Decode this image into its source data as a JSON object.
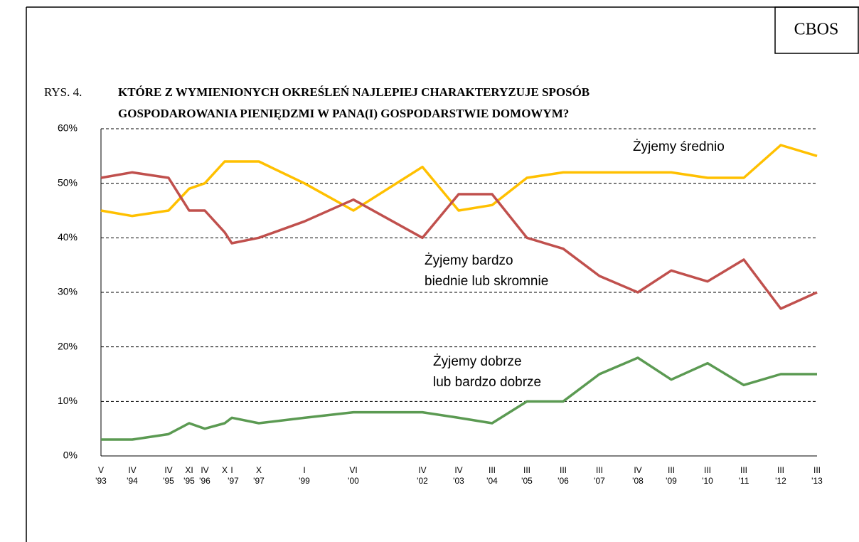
{
  "header": {
    "brand": "CBOS",
    "figure": "RYS. 4.",
    "title_lines": [
      "KTÓRE Z WYMIENIONYCH OKREŚLEŃ NAJLEPIEJ CHARAKTERYZUJE SPOSÓB",
      "GOSPODAROWANIA PIENIĘDZMI W PANA(I) GOSPODARSTWIE DOMOWYM?"
    ]
  },
  "chart_data": {
    "type": "line",
    "categories": [
      "V",
      "IV",
      "IV",
      "XI",
      "IV",
      "X",
      "I",
      "X",
      "I",
      "VI",
      "IV",
      "IV",
      "III",
      "III",
      "III",
      "III",
      "IV",
      "III",
      "III",
      "III",
      "III",
      "III"
    ],
    "years": [
      "'93",
      "'94",
      "'95",
      "'95",
      "'96",
      null,
      "'97",
      "'97",
      "'99",
      "'00",
      "'02",
      "'03",
      "'04",
      "'05",
      "'06",
      "'07",
      "'08",
      "'09",
      "'10",
      "'11",
      "'12",
      "'13"
    ],
    "series": [
      {
        "label_lines": [
          "Żyjemy średnio"
        ],
        "color": "#ffc000",
        "values": [
          45,
          44,
          45,
          49,
          50,
          54,
          54,
          54,
          50,
          45,
          53,
          45,
          46,
          51,
          52,
          52,
          52,
          52,
          51,
          51,
          57,
          55
        ]
      },
      {
        "label_lines": [
          "Żyjemy bardzo",
          "biednie lub skromnie"
        ],
        "color": "#c0504d",
        "values": [
          51,
          52,
          51,
          45,
          45,
          41,
          39,
          40,
          43,
          47,
          40,
          48,
          48,
          40,
          38,
          33,
          30,
          34,
          32,
          36,
          27,
          30
        ]
      },
      {
        "label_lines": [
          "Żyjemy dobrze",
          "lub bardzo dobrze"
        ],
        "color": "#5b9a52",
        "values": [
          3,
          3,
          4,
          6,
          5,
          6,
          7,
          6,
          7,
          8,
          8,
          7,
          6,
          10,
          10,
          15,
          18,
          14,
          17,
          13,
          15,
          15
        ]
      }
    ],
    "ylim": [
      0,
      60
    ],
    "yticks": [
      {
        "value": 0,
        "label": "0%"
      },
      {
        "value": 10,
        "label": "10%"
      },
      {
        "value": 20,
        "label": "20%"
      },
      {
        "value": 30,
        "label": "30%"
      },
      {
        "value": 40,
        "label": "40%"
      },
      {
        "value": 50,
        "label": "50%"
      },
      {
        "value": 60,
        "label": "60%"
      }
    ],
    "grid": true
  }
}
